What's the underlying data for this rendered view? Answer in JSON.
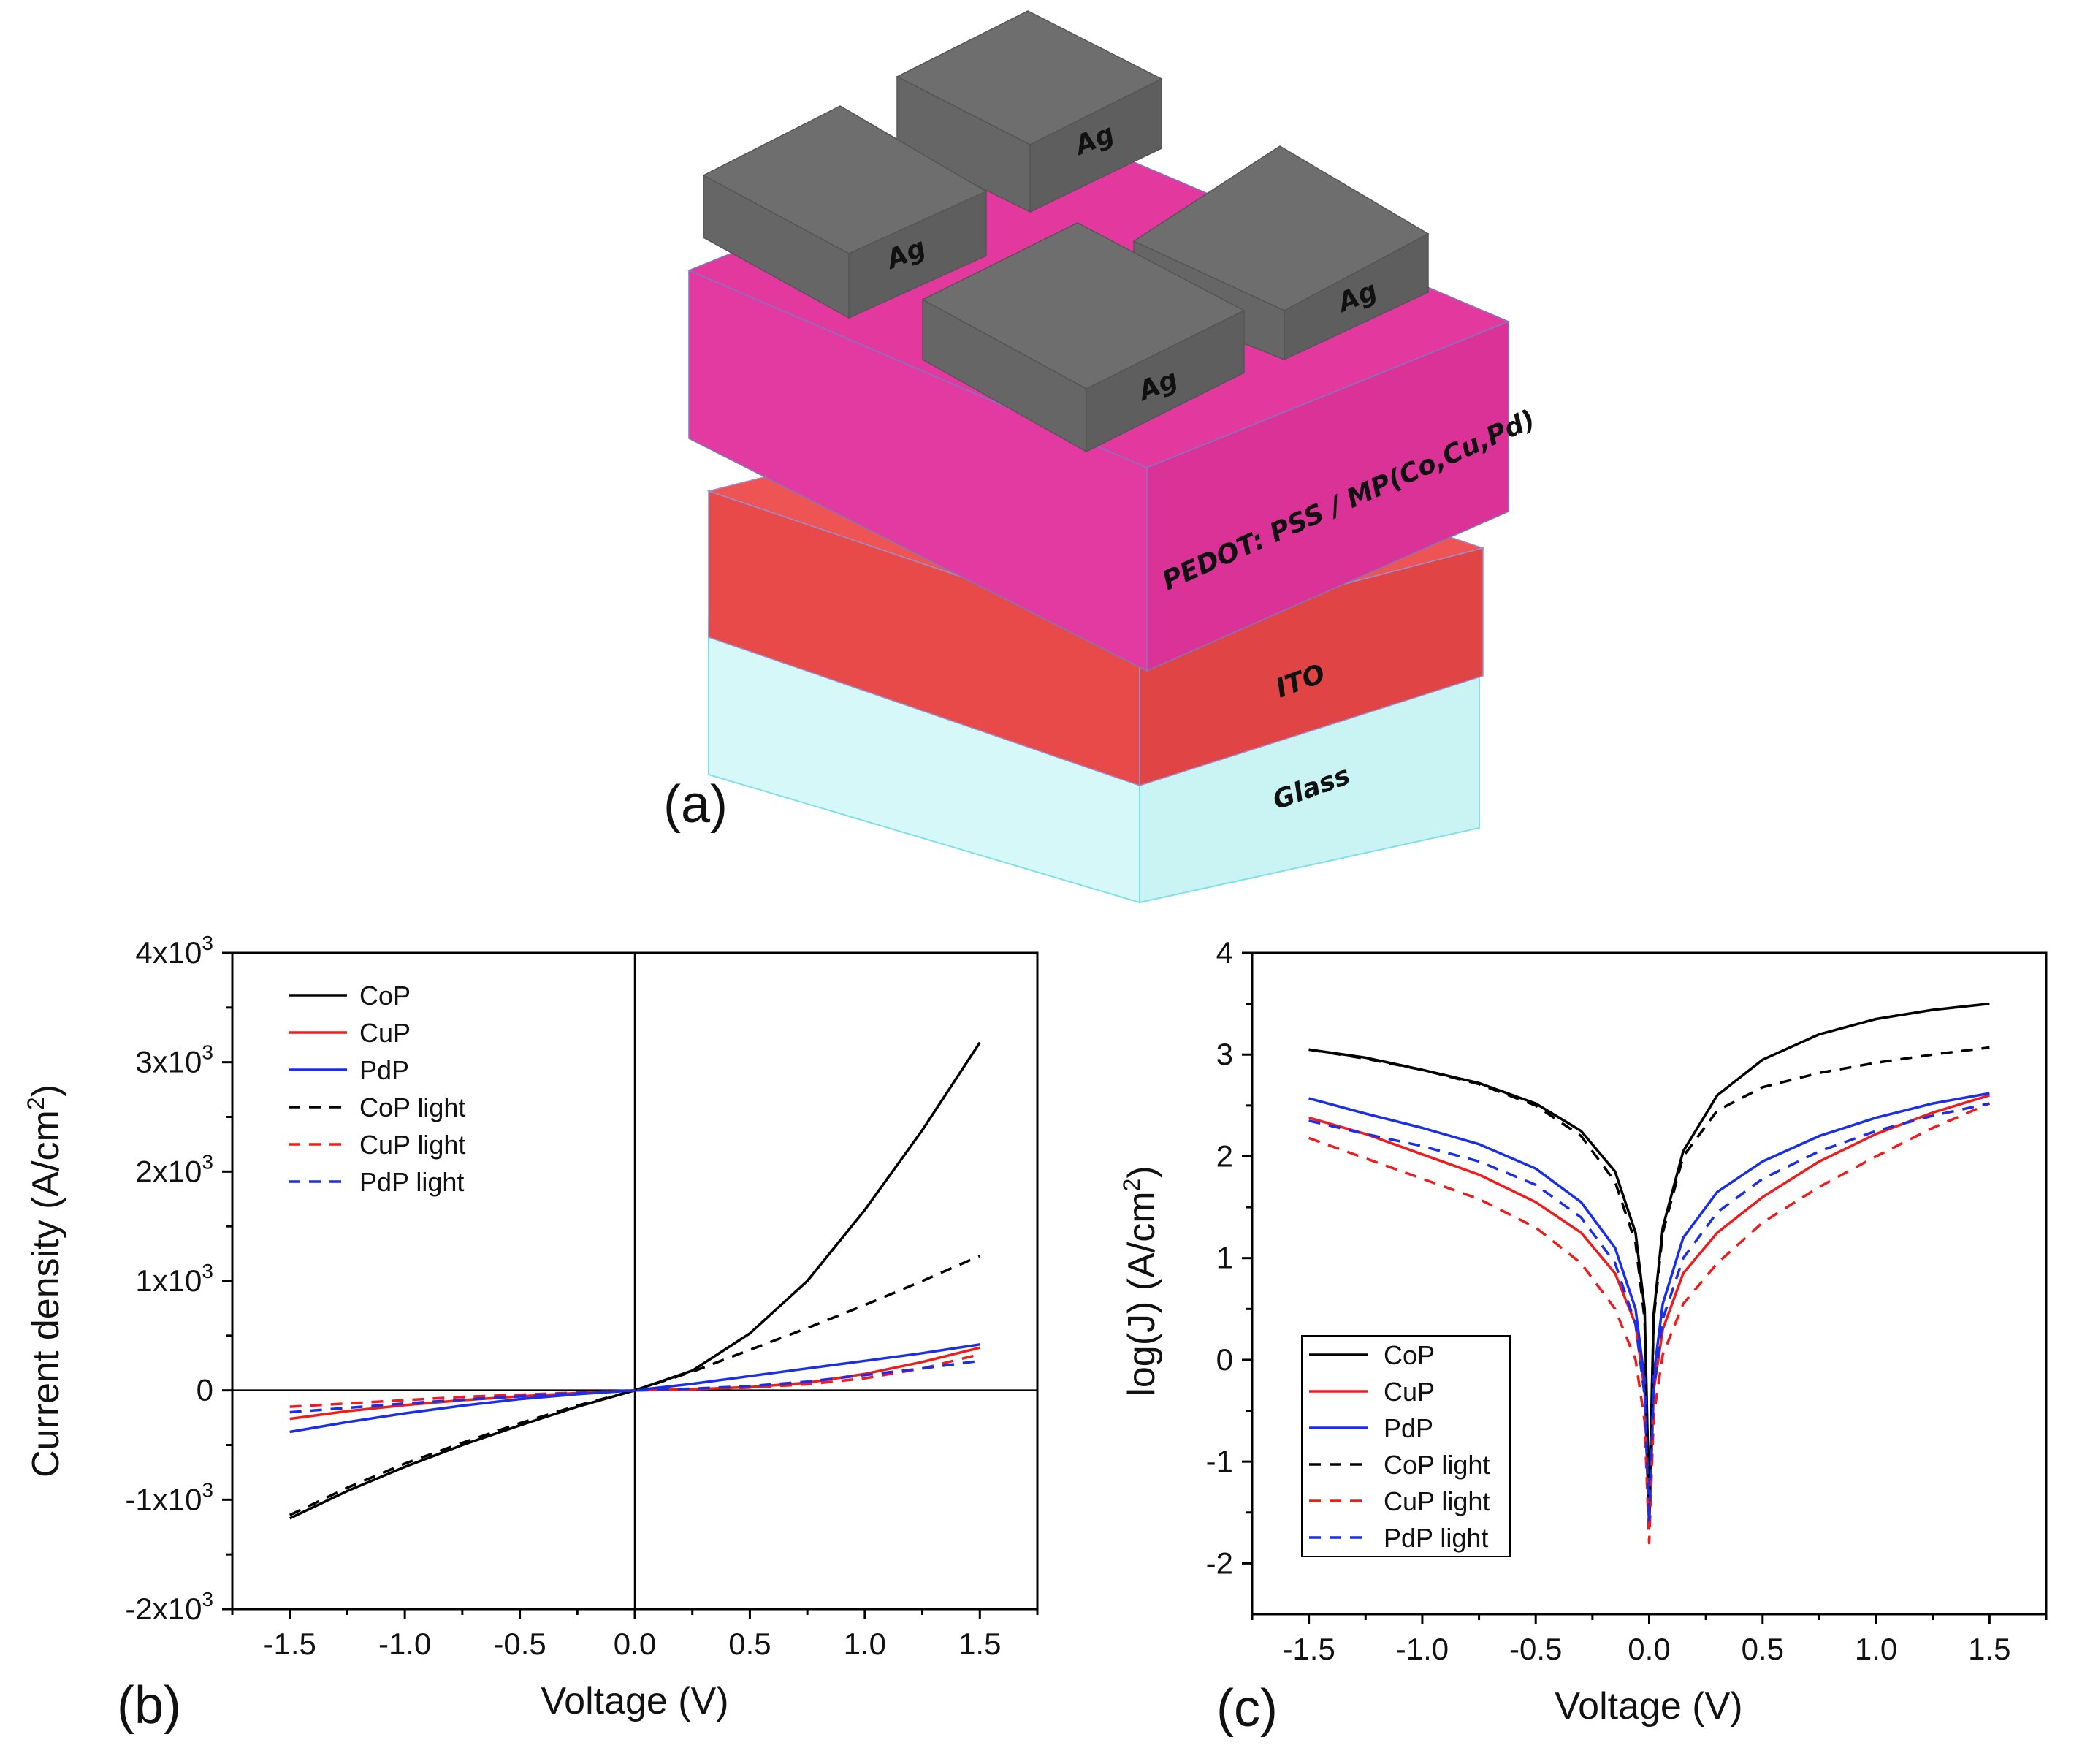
{
  "panel_a": {
    "label": "(a)",
    "layers": {
      "glass": "Glass",
      "ito": "ITO",
      "active": "PEDOT: PSS / MP(Co,Cu,Pd)",
      "electrode": "Ag"
    }
  },
  "colors": {
    "CoP": "#000000",
    "CuP": "#ee1c1c",
    "PdP": "#1a2ee8",
    "glass": "#bff5f5",
    "ito": "#e84a4a",
    "active": "#e0399f",
    "electrode": "#686868"
  },
  "chart_data": [
    {
      "id": "b",
      "panel_label": "(b)",
      "type": "line",
      "xlabel": "Voltage (V)",
      "ylabel": "Current density (A/cm²)",
      "xlim": [
        -1.75,
        1.75
      ],
      "ylim": [
        -2000,
        4000
      ],
      "xticks": [
        -1.5,
        -1.0,
        -0.5,
        0.0,
        0.5,
        1.0,
        1.5
      ],
      "xtick_labels": [
        "-1.5",
        "-1.0",
        "-0.5",
        "0.0",
        "0.5",
        "1.0",
        "1.5"
      ],
      "yticks": [
        -2000,
        -1000,
        0,
        1000,
        2000,
        3000,
        4000
      ],
      "ytick_labels": [
        {
          "mant": "-2x10",
          "exp": "3"
        },
        {
          "mant": "-1x10",
          "exp": "3"
        },
        {
          "mant": "0",
          "exp": ""
        },
        {
          "mant": "1x10",
          "exp": "3"
        },
        {
          "mant": "2x10",
          "exp": "3"
        },
        {
          "mant": "3x10",
          "exp": "3"
        },
        {
          "mant": "4x10",
          "exp": "3"
        }
      ],
      "zero_lines": true,
      "legend_position": "top-left",
      "x": [
        -1.5,
        -1.25,
        -1.0,
        -0.75,
        -0.5,
        -0.25,
        0.0,
        0.25,
        0.5,
        0.75,
        1.0,
        1.25,
        1.5
      ],
      "series": [
        {
          "name": "CoP",
          "color_key": "CoP",
          "dashed": false,
          "values": [
            -1170,
            -920,
            -700,
            -500,
            -320,
            -150,
            0,
            180,
            520,
            1000,
            1650,
            2380,
            3180
          ]
        },
        {
          "name": "CuP",
          "color_key": "CuP",
          "dashed": false,
          "values": [
            -260,
            -190,
            -135,
            -90,
            -55,
            -25,
            0,
            10,
            30,
            70,
            150,
            260,
            390
          ]
        },
        {
          "name": "PdP",
          "color_key": "PdP",
          "dashed": false,
          "values": [
            -380,
            -290,
            -210,
            -140,
            -80,
            -35,
            0,
            60,
            130,
            200,
            270,
            340,
            420
          ]
        },
        {
          "name": "CoP light",
          "color_key": "CoP",
          "dashed": true,
          "values": [
            -1140,
            -890,
            -670,
            -480,
            -300,
            -140,
            0,
            170,
            370,
            570,
            780,
            1000,
            1230
          ]
        },
        {
          "name": "CuP light",
          "color_key": "CuP",
          "dashed": true,
          "values": [
            -150,
            -120,
            -90,
            -60,
            -40,
            -20,
            0,
            10,
            25,
            55,
            110,
            200,
            330
          ]
        },
        {
          "name": "PdP light",
          "color_key": "PdP",
          "dashed": true,
          "values": [
            -200,
            -160,
            -120,
            -85,
            -55,
            -25,
            0,
            15,
            40,
            80,
            140,
            200,
            270
          ]
        }
      ]
    },
    {
      "id": "c",
      "panel_label": "(c)",
      "type": "line",
      "xlabel": "Voltage (V)",
      "ylabel": "log(J) (A/cm²)",
      "xlim": [
        -1.75,
        1.75
      ],
      "ylim": [
        -2.5,
        4
      ],
      "xticks": [
        -1.5,
        -1.0,
        -0.5,
        0.0,
        0.5,
        1.0,
        1.5
      ],
      "xtick_labels": [
        "-1.5",
        "-1.0",
        "-0.5",
        "0.0",
        "0.5",
        "1.0",
        "1.5"
      ],
      "yticks": [
        -2,
        -1,
        0,
        1,
        2,
        3,
        4
      ],
      "ytick_labels": [
        {
          "mant": "-2",
          "exp": ""
        },
        {
          "mant": "-1",
          "exp": ""
        },
        {
          "mant": "0",
          "exp": ""
        },
        {
          "mant": "1",
          "exp": ""
        },
        {
          "mant": "2",
          "exp": ""
        },
        {
          "mant": "3",
          "exp": ""
        },
        {
          "mant": "4",
          "exp": ""
        }
      ],
      "zero_lines": false,
      "legend_position": "bottom-left",
      "x": [
        -1.5,
        -1.25,
        -1.0,
        -0.75,
        -0.5,
        -0.3,
        -0.15,
        -0.06,
        -0.02,
        0.0,
        0.02,
        0.06,
        0.15,
        0.3,
        0.5,
        0.75,
        1.0,
        1.25,
        1.5
      ],
      "series": [
        {
          "name": "CoP",
          "color_key": "CoP",
          "dashed": false,
          "values": [
            3.05,
            2.97,
            2.85,
            2.72,
            2.52,
            2.25,
            1.85,
            1.25,
            0.5,
            -1.45,
            0.45,
            1.3,
            2.05,
            2.6,
            2.95,
            3.2,
            3.35,
            3.44,
            3.5
          ]
        },
        {
          "name": "CuP",
          "color_key": "CuP",
          "dashed": false,
          "values": [
            2.38,
            2.22,
            2.02,
            1.82,
            1.55,
            1.25,
            0.85,
            0.35,
            -0.3,
            -1.65,
            -0.3,
            0.3,
            0.85,
            1.25,
            1.6,
            1.95,
            2.22,
            2.43,
            2.6
          ]
        },
        {
          "name": "PdP",
          "color_key": "PdP",
          "dashed": false,
          "values": [
            2.57,
            2.42,
            2.28,
            2.12,
            1.88,
            1.55,
            1.1,
            0.5,
            -0.2,
            -1.55,
            -0.15,
            0.55,
            1.2,
            1.65,
            1.95,
            2.2,
            2.38,
            2.52,
            2.62
          ]
        },
        {
          "name": "CoP light",
          "color_key": "CoP",
          "dashed": true,
          "values": [
            3.05,
            2.96,
            2.85,
            2.71,
            2.5,
            2.2,
            1.75,
            1.15,
            0.4,
            -1.5,
            0.4,
            1.25,
            2.0,
            2.45,
            2.68,
            2.82,
            2.92,
            3.0,
            3.07
          ]
        },
        {
          "name": "CuP light",
          "color_key": "CuP",
          "dashed": true,
          "values": [
            2.18,
            1.98,
            1.78,
            1.58,
            1.3,
            0.95,
            0.5,
            0.0,
            -0.6,
            -1.8,
            -0.55,
            0.05,
            0.55,
            0.95,
            1.35,
            1.7,
            2.0,
            2.28,
            2.52
          ]
        },
        {
          "name": "PdP light",
          "color_key": "PdP",
          "dashed": true,
          "values": [
            2.35,
            2.22,
            2.1,
            1.95,
            1.72,
            1.4,
            0.95,
            0.35,
            -0.35,
            -1.6,
            -0.3,
            0.4,
            1.0,
            1.45,
            1.78,
            2.05,
            2.25,
            2.4,
            2.52
          ]
        }
      ]
    }
  ]
}
